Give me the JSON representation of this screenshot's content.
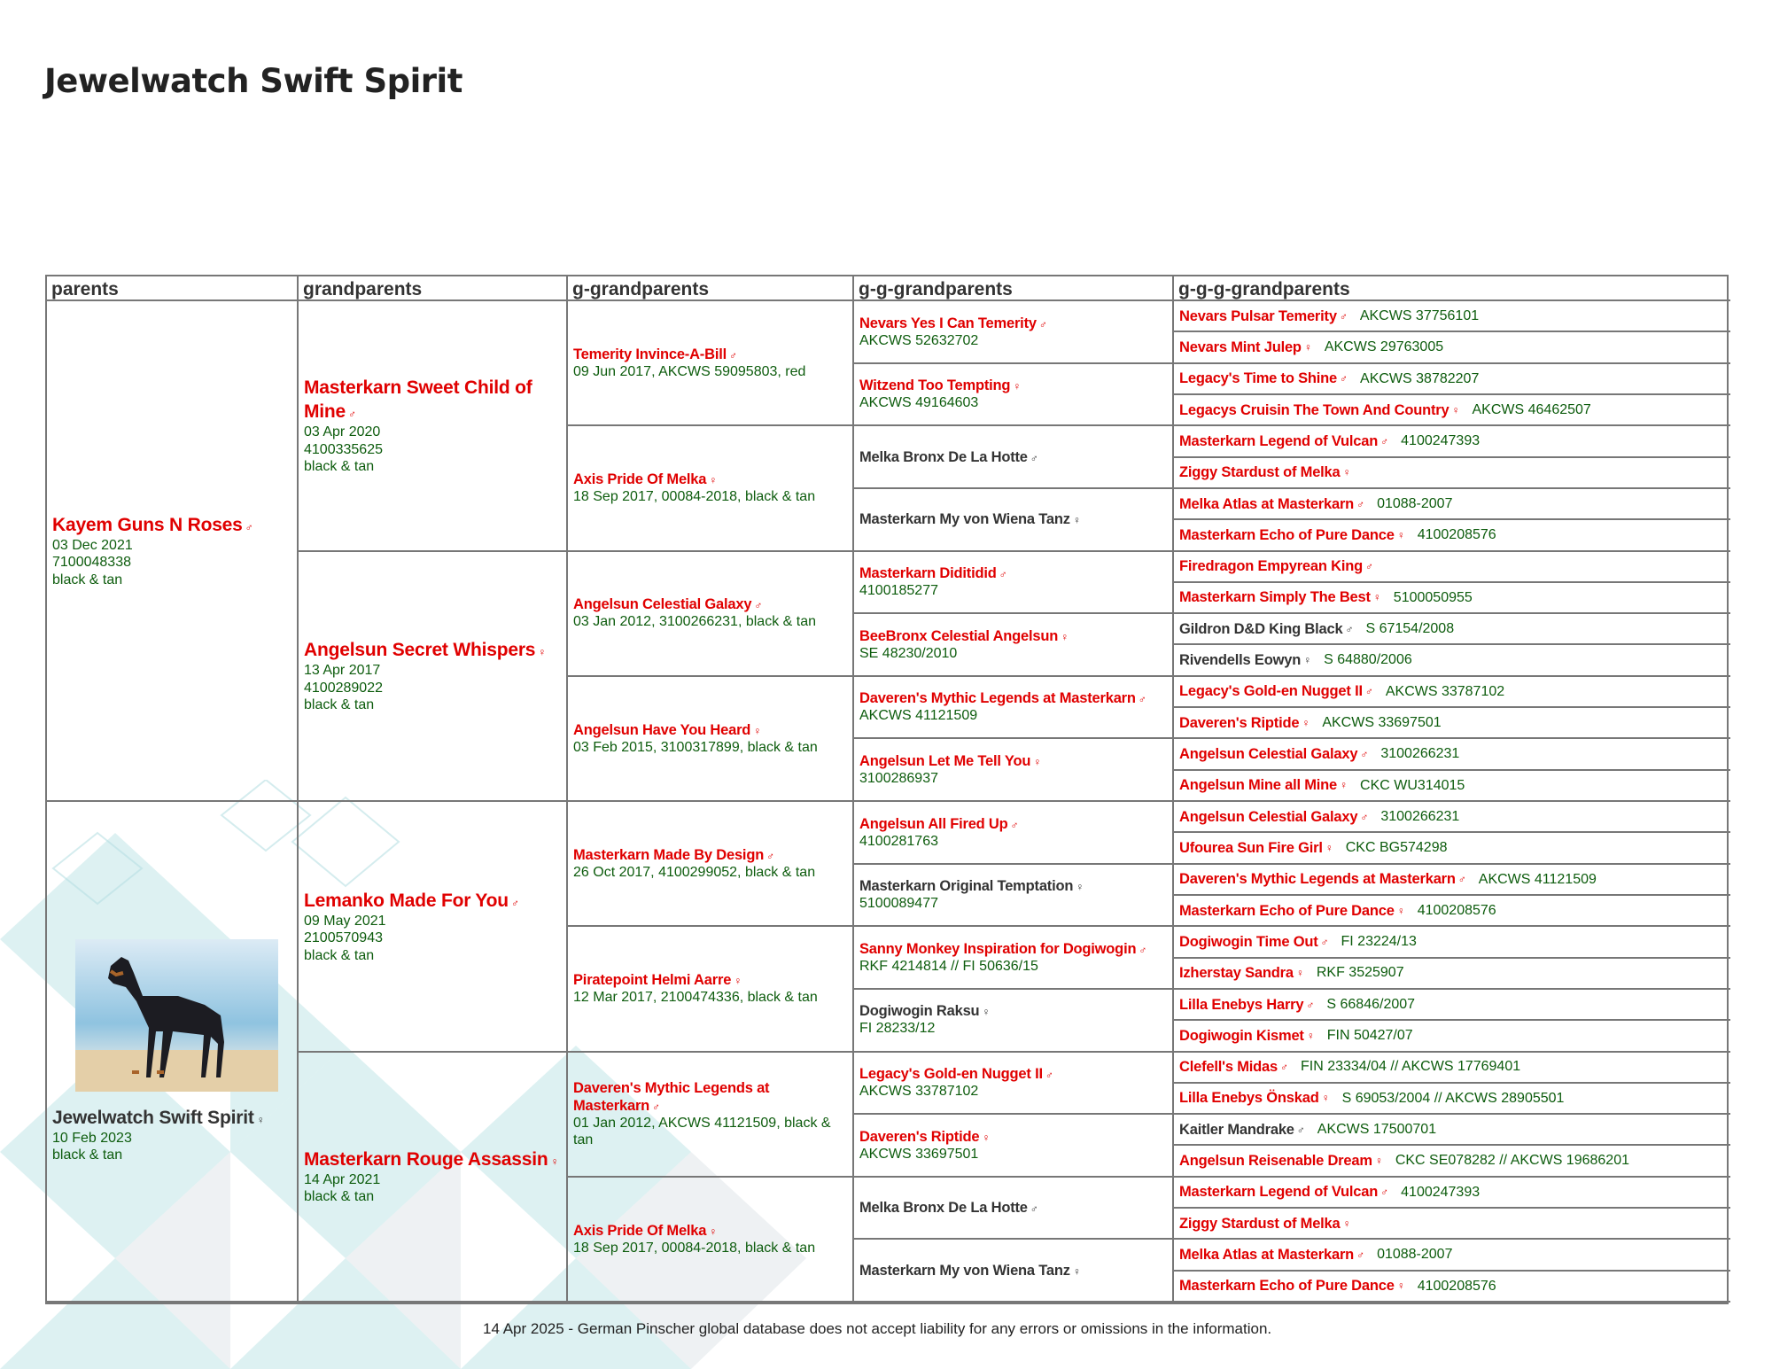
{
  "title": "Jewelwatch Swift Spirit",
  "colors": {
    "linked_name": "#e00000",
    "unlinked_name": "#333333",
    "info_text": "#0d5c0d",
    "border": "#777777"
  },
  "headers": [
    "parents",
    "grandparents",
    "g-grandparents",
    "g-g-grandparents",
    "g-g-g-grandparents"
  ],
  "parents": [
    {
      "name": "Kayem Guns N Roses",
      "sex": "♂",
      "linked": true,
      "lines": [
        "03 Dec 2021",
        "7100048338",
        "black & tan"
      ]
    },
    {
      "name": "Jewelwatch Swift Spirit",
      "sex": "♀",
      "linked": false,
      "lines": [
        "10 Feb 2023",
        "black & tan"
      ],
      "photo": "dog-photo"
    }
  ],
  "grandparents": [
    {
      "name": "Masterkarn Sweet Child of Mine",
      "sex": "♂",
      "linked": true,
      "lines": [
        "03 Apr 2020",
        "4100335625",
        "black & tan"
      ]
    },
    {
      "name": "Angelsun Secret Whispers",
      "sex": "♀",
      "linked": true,
      "lines": [
        "13 Apr 2017",
        "4100289022",
        "black & tan"
      ]
    },
    {
      "name": "Lemanko Made For You",
      "sex": "♂",
      "linked": true,
      "lines": [
        "09 May 2021",
        "2100570943",
        "black & tan"
      ]
    },
    {
      "name": "Masterkarn Rouge Assassin",
      "sex": "♀",
      "linked": true,
      "lines": [
        "14 Apr 2021",
        "black & tan"
      ]
    }
  ],
  "g_grandparents": [
    {
      "name": "Temerity Invince-A-Bill",
      "sex": "♂",
      "linked": true,
      "lines": [
        "09 Jun 2017, AKCWS 59095803, red"
      ]
    },
    {
      "name": "Axis Pride Of Melka",
      "sex": "♀",
      "linked": true,
      "lines": [
        "18 Sep 2017, 00084-2018, black & tan"
      ]
    },
    {
      "name": "Angelsun Celestial Galaxy",
      "sex": "♂",
      "linked": true,
      "lines": [
        "03 Jan 2012, 3100266231, black & tan"
      ]
    },
    {
      "name": "Angelsun Have You Heard",
      "sex": "♀",
      "linked": true,
      "lines": [
        "03 Feb 2015, 3100317899, black & tan"
      ]
    },
    {
      "name": "Masterkarn Made By Design",
      "sex": "♂",
      "linked": true,
      "lines": [
        "26 Oct 2017, 4100299052, black & tan"
      ]
    },
    {
      "name": "Piratepoint Helmi Aarre",
      "sex": "♀",
      "linked": true,
      "lines": [
        "12 Mar 2017, 2100474336, black & tan"
      ]
    },
    {
      "name": "Daveren's Mythic Legends at Masterkarn",
      "sex": "♂",
      "linked": true,
      "lines": [
        "01 Jan 2012, AKCWS 41121509, black & tan"
      ]
    },
    {
      "name": "Axis Pride Of Melka",
      "sex": "♀",
      "linked": true,
      "lines": [
        "18 Sep 2017, 00084-2018, black & tan"
      ]
    }
  ],
  "gg_grandparents": [
    {
      "name": "Nevars Yes I Can Temerity",
      "sex": "♂",
      "linked": true,
      "lines": [
        "AKCWS 52632702"
      ]
    },
    {
      "name": "Witzend Too Tempting",
      "sex": "♀",
      "linked": true,
      "lines": [
        "AKCWS 49164603"
      ]
    },
    {
      "name": "Melka Bronx De La Hotte",
      "sex": "♂",
      "linked": false,
      "lines": []
    },
    {
      "name": "Masterkarn My von Wiena Tanz",
      "sex": "♀",
      "linked": false,
      "lines": []
    },
    {
      "name": "Masterkarn Diditidid",
      "sex": "♂",
      "linked": true,
      "lines": [
        "4100185277"
      ]
    },
    {
      "name": "BeeBronx Celestial Angelsun",
      "sex": "♀",
      "linked": true,
      "lines": [
        "SE 48230/2010"
      ]
    },
    {
      "name": "Daveren's Mythic Legends at Masterkarn",
      "sex": "♂",
      "linked": true,
      "lines": [
        "AKCWS 41121509"
      ]
    },
    {
      "name": "Angelsun Let Me Tell You",
      "sex": "♀",
      "linked": true,
      "lines": [
        "3100286937"
      ]
    },
    {
      "name": "Angelsun All Fired Up",
      "sex": "♂",
      "linked": true,
      "lines": [
        "4100281763"
      ]
    },
    {
      "name": "Masterkarn Original Temptation",
      "sex": "♀",
      "linked": false,
      "lines": [
        "5100089477"
      ]
    },
    {
      "name": "Sanny Monkey Inspiration for Dogiwogin",
      "sex": "♂",
      "linked": true,
      "lines": [
        "RKF 4214814 // FI 50636/15"
      ]
    },
    {
      "name": "Dogiwogin Raksu",
      "sex": "♀",
      "linked": false,
      "lines": [
        "FI 28233/12"
      ]
    },
    {
      "name": "Legacy's Gold-en Nugget II",
      "sex": "♂",
      "linked": true,
      "lines": [
        "AKCWS 33787102"
      ]
    },
    {
      "name": "Daveren's Riptide",
      "sex": "♀",
      "linked": true,
      "lines": [
        "AKCWS 33697501"
      ]
    },
    {
      "name": "Melka Bronx De La Hotte",
      "sex": "♂",
      "linked": false,
      "lines": []
    },
    {
      "name": "Masterkarn My von Wiena Tanz",
      "sex": "♀",
      "linked": false,
      "lines": []
    }
  ],
  "ggg_grandparents": [
    {
      "name": "Nevars Pulsar Temerity",
      "sex": "♂",
      "linked": true,
      "reg": "AKCWS 37756101"
    },
    {
      "name": "Nevars Mint Julep",
      "sex": "♀",
      "linked": true,
      "reg": "AKCWS 29763005"
    },
    {
      "name": "Legacy's Time to Shine",
      "sex": "♂",
      "linked": true,
      "reg": "AKCWS 38782207"
    },
    {
      "name": "Legacys Cruisin The Town And Country",
      "sex": "♀",
      "linked": true,
      "reg": "AKCWS 46462507"
    },
    {
      "name": "Masterkarn Legend of Vulcan",
      "sex": "♂",
      "linked": true,
      "reg": "4100247393"
    },
    {
      "name": "Ziggy Stardust of Melka",
      "sex": "♀",
      "linked": true,
      "reg": ""
    },
    {
      "name": "Melka Atlas at Masterkarn",
      "sex": "♂",
      "linked": true,
      "reg": "01088-2007"
    },
    {
      "name": "Masterkarn Echo of Pure Dance",
      "sex": "♀",
      "linked": true,
      "reg": "4100208576"
    },
    {
      "name": "Firedragon Empyrean King",
      "sex": "♂",
      "linked": true,
      "reg": ""
    },
    {
      "name": "Masterkarn Simply The Best",
      "sex": "♀",
      "linked": true,
      "reg": "5100050955"
    },
    {
      "name": "Gildron D&D King Black",
      "sex": "♂",
      "linked": false,
      "reg": "S 67154/2008"
    },
    {
      "name": "Rivendells Eowyn",
      "sex": "♀",
      "linked": false,
      "reg": "S 64880/2006"
    },
    {
      "name": "Legacy's Gold-en Nugget II",
      "sex": "♂",
      "linked": true,
      "reg": "AKCWS 33787102"
    },
    {
      "name": "Daveren's Riptide",
      "sex": "♀",
      "linked": true,
      "reg": "AKCWS 33697501"
    },
    {
      "name": "Angelsun Celestial Galaxy",
      "sex": "♂",
      "linked": true,
      "reg": "3100266231"
    },
    {
      "name": "Angelsun Mine all Mine",
      "sex": "♀",
      "linked": true,
      "reg": "CKC WU314015"
    },
    {
      "name": "Angelsun Celestial Galaxy",
      "sex": "♂",
      "linked": true,
      "reg": "3100266231"
    },
    {
      "name": "Ufourea Sun Fire Girl",
      "sex": "♀",
      "linked": true,
      "reg": "CKC BG574298"
    },
    {
      "name": "Daveren's Mythic Legends at Masterkarn",
      "sex": "♂",
      "linked": true,
      "reg": "AKCWS 41121509"
    },
    {
      "name": "Masterkarn Echo of Pure Dance",
      "sex": "♀",
      "linked": true,
      "reg": "4100208576"
    },
    {
      "name": "Dogiwogin Time Out",
      "sex": "♂",
      "linked": true,
      "reg": "FI 23224/13"
    },
    {
      "name": "Izherstay Sandra",
      "sex": "♀",
      "linked": true,
      "reg": "RKF 3525907"
    },
    {
      "name": "Lilla Enebys Harry",
      "sex": "♂",
      "linked": true,
      "reg": "S 66846/2007"
    },
    {
      "name": "Dogiwogin Kismet",
      "sex": "♀",
      "linked": true,
      "reg": "FIN 50427/07"
    },
    {
      "name": "Clefell's Midas",
      "sex": "♂",
      "linked": true,
      "reg": "FIN 23334/04 // AKCWS 17769401"
    },
    {
      "name": "Lilla Enebys Önskad",
      "sex": "♀",
      "linked": true,
      "reg": "S 69053/2004 // AKCWS 28905501"
    },
    {
      "name": "Kaitler Mandrake",
      "sex": "♂",
      "linked": false,
      "reg": "AKCWS 17500701"
    },
    {
      "name": "Angelsun Reisenable Dream",
      "sex": "♀",
      "linked": true,
      "reg": "CKC SE078282 // AKCWS 19686201"
    },
    {
      "name": "Masterkarn Legend of Vulcan",
      "sex": "♂",
      "linked": true,
      "reg": "4100247393"
    },
    {
      "name": "Ziggy Stardust of Melka",
      "sex": "♀",
      "linked": true,
      "reg": ""
    },
    {
      "name": "Melka Atlas at Masterkarn",
      "sex": "♂",
      "linked": true,
      "reg": "01088-2007"
    },
    {
      "name": "Masterkarn Echo of Pure Dance",
      "sex": "♀",
      "linked": true,
      "reg": "4100208576"
    }
  ],
  "footer": "14 Apr 2025 - German Pinscher global database does not accept liability for any errors or omissions in the information."
}
